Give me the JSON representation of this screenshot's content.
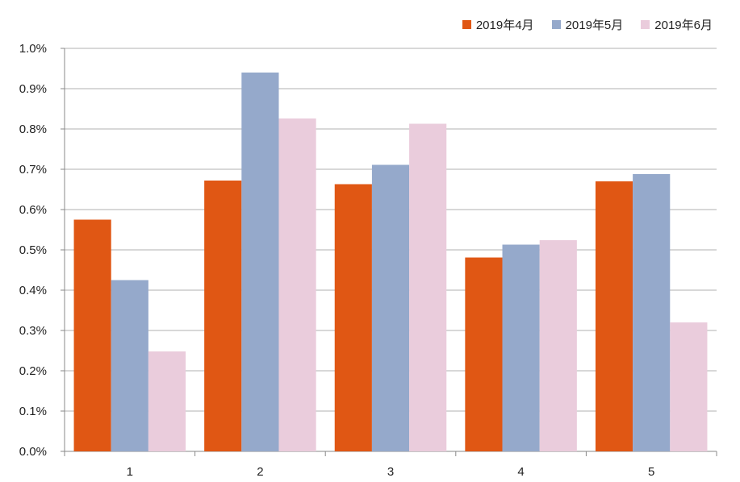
{
  "chart_data": {
    "type": "bar",
    "categories": [
      "1",
      "2",
      "3",
      "4",
      "5"
    ],
    "series": [
      {
        "name": "2019年4月",
        "values": [
          0.575,
          0.672,
          0.663,
          0.481,
          0.67
        ],
        "color": "#E05714"
      },
      {
        "name": "2019年5月",
        "values": [
          0.425,
          0.94,
          0.711,
          0.513,
          0.688
        ],
        "color": "#95A9CB"
      },
      {
        "name": "2019年6月",
        "values": [
          0.248,
          0.826,
          0.813,
          0.524,
          0.32
        ],
        "color": "#EACCDC"
      }
    ],
    "y_ticks": [
      "0.0%",
      "0.1%",
      "0.2%",
      "0.3%",
      "0.4%",
      "0.5%",
      "0.6%",
      "0.7%",
      "0.8%",
      "0.9%",
      "1.0%"
    ],
    "ylim": [
      0,
      1.0
    ],
    "grid": true,
    "legend_position": "top-right",
    "title": "",
    "xlabel": "",
    "ylabel": ""
  }
}
